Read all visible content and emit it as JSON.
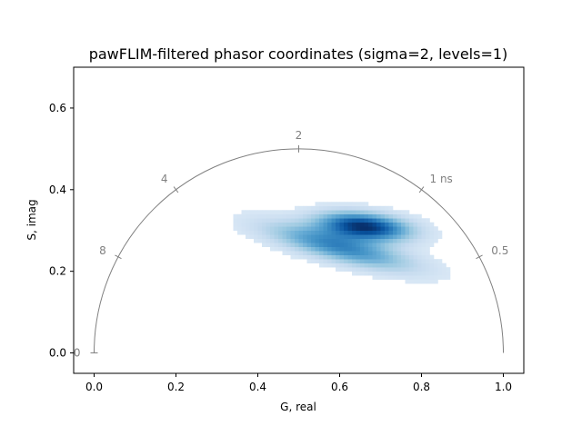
{
  "chart_data": {
    "type": "heatmap",
    "title": "pawFLIM-filtered phasor coordinates (sigma=2, levels=1)",
    "xlabel": "G, real",
    "ylabel": "S, imag",
    "xlim": [
      -0.05,
      1.05
    ],
    "ylim": [
      -0.05,
      0.7
    ],
    "xticks": [
      {
        "value": 0.0,
        "label": "0.0"
      },
      {
        "value": 0.2,
        "label": "0.2"
      },
      {
        "value": 0.4,
        "label": "0.4"
      },
      {
        "value": 0.6,
        "label": "0.6"
      },
      {
        "value": 0.8,
        "label": "0.8"
      },
      {
        "value": 1.0,
        "label": "1.0"
      }
    ],
    "yticks": [
      {
        "value": 0.0,
        "label": "0.0"
      },
      {
        "value": 0.2,
        "label": "0.2"
      },
      {
        "value": 0.4,
        "label": "0.4"
      },
      {
        "value": 0.6,
        "label": "0.6"
      }
    ],
    "universal_semicircle": {
      "center": [
        0.5,
        0.0
      ],
      "radius": 0.5,
      "color": "#808080",
      "lifetime_ticks": [
        {
          "g": 0.0,
          "s": 0.0,
          "label": "0"
        },
        {
          "g": 0.9412,
          "s": 0.2353,
          "label": "0.5"
        },
        {
          "g": 0.8,
          "s": 0.4,
          "label": "1 ns"
        },
        {
          "g": 0.5,
          "s": 0.5,
          "label": "2"
        },
        {
          "g": 0.2,
          "s": 0.4,
          "label": "4"
        },
        {
          "g": 0.0588,
          "s": 0.2353,
          "label": "8"
        }
      ]
    },
    "colormap": "Blues",
    "histogram": {
      "bin_size": 0.01,
      "clusters": [
        {
          "g": 0.66,
          "s": 0.31,
          "sigma_major": 0.075,
          "sigma_minor": 0.022,
          "angle_deg": -6,
          "peak": 1.0
        },
        {
          "g": 0.6,
          "s": 0.26,
          "sigma_major": 0.12,
          "sigma_minor": 0.024,
          "angle_deg": -14,
          "peak": 0.62
        }
      ]
    }
  }
}
